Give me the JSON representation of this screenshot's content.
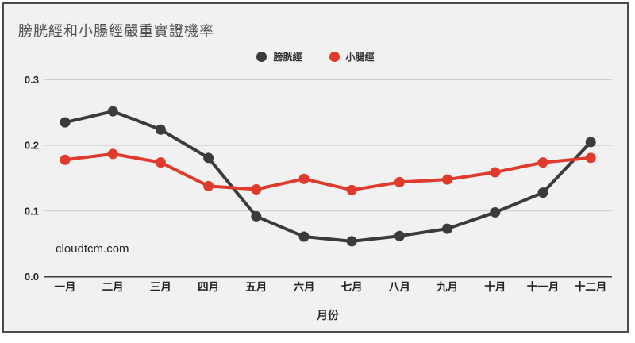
{
  "card": {
    "title": "膀胱經和小腸經嚴重實證機率",
    "watermark": "cloudtcm.com"
  },
  "colors": {
    "background": "#f1f1f1",
    "border": "#4a4a4a",
    "gridline": "#cbcbcb",
    "axis_line": "#3f3f3f",
    "series_bladder": "#3b3b3b",
    "series_small_intestine": "#e03a2c",
    "tick_text": "#222222",
    "title_text": "#4f4f4f"
  },
  "chart_data": {
    "type": "line",
    "title": "膀胱經和小腸經嚴重實證機率",
    "xlabel": "月份",
    "ylabel": "",
    "watermark": "cloudtcm.com",
    "categories": [
      "一月",
      "二月",
      "三月",
      "四月",
      "五月",
      "六月",
      "七月",
      "八月",
      "九月",
      "十月",
      "十一月",
      "十二月"
    ],
    "yticks": [
      0.0,
      0.1,
      0.2,
      0.3
    ],
    "ylim": [
      0.0,
      0.3
    ],
    "grid": true,
    "legend_position": "top-center",
    "series": [
      {
        "name": "膀胱經",
        "color": "#3b3b3b",
        "values": [
          0.235,
          0.252,
          0.224,
          0.181,
          0.092,
          0.061,
          0.054,
          0.062,
          0.073,
          0.098,
          0.128,
          0.205
        ]
      },
      {
        "name": "小腸經",
        "color": "#e03a2c",
        "values": [
          0.178,
          0.187,
          0.174,
          0.138,
          0.133,
          0.149,
          0.132,
          0.144,
          0.148,
          0.159,
          0.174,
          0.181
        ]
      }
    ]
  }
}
